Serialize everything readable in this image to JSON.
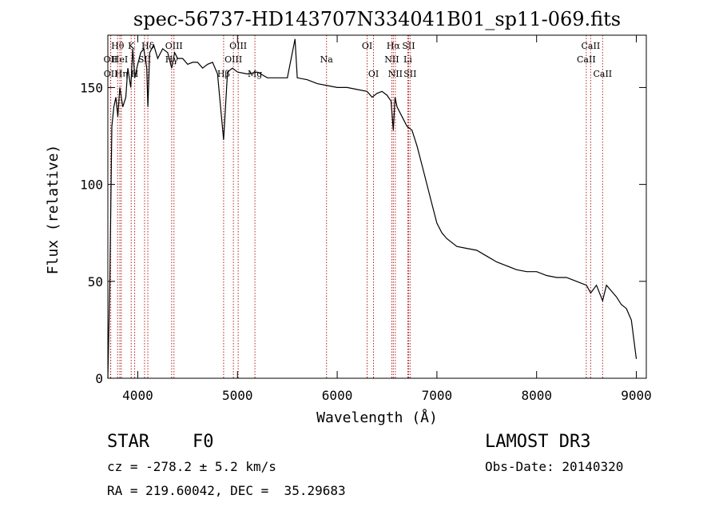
{
  "chart_data": {
    "type": "line",
    "title": "spec-56737-HD143707N334041B01_sp11-069.fits",
    "xlabel": "Wavelength (Å)",
    "ylabel": "Flux (relative)",
    "xlim": [
      3700,
      9100
    ],
    "ylim": [
      0,
      177
    ],
    "xticks": [
      4000,
      5000,
      6000,
      7000,
      8000,
      9000
    ],
    "yticks": [
      0,
      50,
      100,
      150
    ],
    "grid": false,
    "line_color": "#000000",
    "marker_color": "#b22222",
    "series": [
      {
        "x": [
          3700,
          3720,
          3740,
          3760,
          3780,
          3800,
          3820,
          3850,
          3880,
          3900,
          3930,
          3950,
          3970,
          4000,
          4030,
          4060,
          4090,
          4101,
          4120,
          4160,
          4200,
          4250,
          4300,
          4340,
          4370,
          4400,
          4450,
          4500,
          4550,
          4600,
          4650,
          4700,
          4750,
          4800,
          4861,
          4900,
          4950,
          5000,
          5100,
          5200,
          5300,
          5400,
          5500,
          5577,
          5600,
          5700,
          5800,
          5900,
          6000,
          6100,
          6200,
          6300,
          6350,
          6400,
          6450,
          6500,
          6540,
          6563,
          6580,
          6600,
          6650,
          6700,
          6750,
          6800,
          6850,
          6900,
          6950,
          7000,
          7050,
          7100,
          7200,
          7300,
          7400,
          7500,
          7600,
          7700,
          7800,
          7900,
          8000,
          8100,
          8200,
          8300,
          8400,
          8500,
          8542,
          8600,
          8662,
          8700,
          8750,
          8800,
          8850,
          8900,
          8950,
          9000
        ],
        "y": [
          0,
          50,
          130,
          140,
          145,
          135,
          150,
          140,
          145,
          160,
          150,
          170,
          155,
          162,
          168,
          170,
          160,
          140,
          168,
          172,
          165,
          170,
          168,
          160,
          168,
          165,
          165,
          162,
          163,
          163,
          160,
          162,
          163,
          157,
          123,
          158,
          160,
          158,
          157,
          158,
          155,
          155,
          155,
          175,
          155,
          154,
          152,
          151,
          150,
          150,
          149,
          148,
          145,
          147,
          148,
          146,
          143,
          128,
          145,
          140,
          135,
          130,
          128,
          120,
          110,
          100,
          90,
          80,
          75,
          72,
          68,
          67,
          66,
          63,
          60,
          58,
          56,
          55,
          55,
          53,
          52,
          52,
          50,
          48,
          44,
          48,
          40,
          48,
          45,
          42,
          38,
          36,
          30,
          10
        ]
      }
    ],
    "line_markers": [
      {
        "label": "Hθ",
        "x": 3798,
        "row": 1
      },
      {
        "label": "OII",
        "x": 3727,
        "row": 2
      },
      {
        "label": "OII",
        "x": 3729,
        "row": 3
      },
      {
        "label": "HeI",
        "x": 3820,
        "row": 2
      },
      {
        "label": "Hη",
        "x": 3835,
        "row": 3
      },
      {
        "label": "K",
        "x": 3934,
        "row": 1
      },
      {
        "label": "SII",
        "x": 4068,
        "row": 2
      },
      {
        "label": "H",
        "x": 3969,
        "row": 3
      },
      {
        "label": "Hδ",
        "x": 4101,
        "row": 1
      },
      {
        "label": "OIII",
        "x": 4363,
        "row": 1
      },
      {
        "label": "Hγ",
        "x": 4340,
        "row": 2
      },
      {
        "label": "Hβ",
        "x": 4861,
        "row": 3
      },
      {
        "label": "OIII",
        "x": 5007,
        "row": 1
      },
      {
        "label": "OIII",
        "x": 4959,
        "row": 2
      },
      {
        "label": "Mg",
        "x": 5175,
        "row": 3
      },
      {
        "label": "Na",
        "x": 5893,
        "row": 2
      },
      {
        "label": "OI",
        "x": 6300,
        "row": 1
      },
      {
        "label": "OI",
        "x": 6364,
        "row": 3
      },
      {
        "label": "Hα",
        "x": 6563,
        "row": 1
      },
      {
        "label": "NII",
        "x": 6548,
        "row": 2
      },
      {
        "label": "NII",
        "x": 6583,
        "row": 3
      },
      {
        "label": "SII",
        "x": 6716,
        "row": 1
      },
      {
        "label": "Li",
        "x": 6708,
        "row": 2
      },
      {
        "label": "SII",
        "x": 6731,
        "row": 3
      },
      {
        "label": "CaII",
        "x": 8542,
        "row": 1
      },
      {
        "label": "CaII",
        "x": 8498,
        "row": 2
      },
      {
        "label": "CaII",
        "x": 8662,
        "row": 3
      }
    ]
  },
  "info": {
    "object_class": "STAR",
    "subclass": "F0",
    "survey": "LAMOST DR3",
    "redshift": "cz = -278.2 ± 5.2 km/s",
    "obs_date": "Obs-Date: 20140320",
    "coords": "RA = 219.60042, DEC =  35.29683"
  }
}
